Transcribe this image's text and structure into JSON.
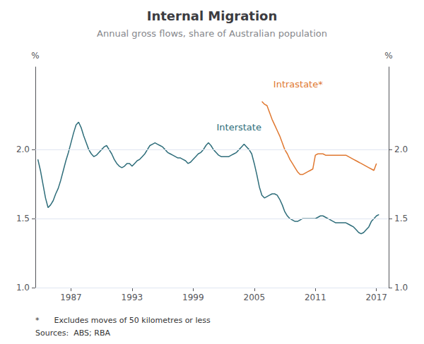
{
  "chart_data": {
    "type": "line",
    "title": "Internal Migration",
    "subtitle": "Annual gross flows, share of Australian population",
    "ylabel": "%",
    "y2label": "%",
    "footnotes": [
      "*      Excludes moves of 50 kilometres or less",
      "Sources:  ABS; RBA"
    ],
    "xlim": [
      1983.5,
      2018.2
    ],
    "xticks": [
      1987,
      1993,
      1999,
      2005,
      2011,
      2017
    ],
    "ylim": [
      1.0,
      2.6
    ],
    "yticks": [
      {
        "value": 1.0,
        "label": "1.0"
      },
      {
        "value": 1.5,
        "label": "1.5"
      },
      {
        "value": 2.0,
        "label": "2.0"
      }
    ],
    "y2lim": [
      1.0,
      2.6
    ],
    "y2ticks": [
      {
        "value": 1.0,
        "label": "1.0"
      },
      {
        "value": 1.5,
        "label": "1.5"
      },
      {
        "value": 2.0,
        "label": "2.0"
      }
    ],
    "grid": true,
    "series": [
      {
        "name": "Interstate",
        "color": "#2e6d7a",
        "annotation": {
          "x": 2003.5,
          "y": 2.12
        },
        "x": [
          1983.75,
          1984.0,
          1984.25,
          1984.5,
          1984.75,
          1985.0,
          1985.25,
          1985.5,
          1985.75,
          1986.0,
          1986.25,
          1986.5,
          1986.75,
          1987.0,
          1987.25,
          1987.5,
          1987.75,
          1988.0,
          1988.25,
          1988.5,
          1988.75,
          1989.0,
          1989.25,
          1989.5,
          1989.75,
          1990.0,
          1990.25,
          1990.5,
          1990.75,
          1991.0,
          1991.25,
          1991.5,
          1991.75,
          1992.0,
          1992.25,
          1992.5,
          1992.75,
          1993.0,
          1993.25,
          1993.5,
          1993.75,
          1994.0,
          1994.25,
          1994.5,
          1994.75,
          1995.0,
          1995.25,
          1995.5,
          1995.75,
          1996.0,
          1996.25,
          1996.5,
          1996.75,
          1997.0,
          1997.25,
          1997.5,
          1997.75,
          1998.0,
          1998.25,
          1998.5,
          1998.75,
          1999.0,
          1999.25,
          1999.5,
          1999.75,
          2000.0,
          2000.25,
          2000.5,
          2000.75,
          2001.0,
          2001.25,
          2001.5,
          2001.75,
          2002.0,
          2002.25,
          2002.5,
          2002.75,
          2003.0,
          2003.25,
          2003.5,
          2003.75,
          2004.0,
          2004.25,
          2004.5,
          2004.75,
          2005.0,
          2005.25,
          2005.5,
          2005.75,
          2006.0,
          2006.25,
          2006.5,
          2006.75,
          2007.0,
          2007.25,
          2007.5,
          2007.75,
          2008.0,
          2008.25,
          2008.5,
          2008.75,
          2009.0,
          2009.25,
          2009.5,
          2009.75,
          2010.0,
          2010.25,
          2010.5,
          2010.75,
          2011.0,
          2011.25,
          2011.5,
          2011.75,
          2012.0,
          2012.25,
          2012.5,
          2012.75,
          2013.0,
          2013.25,
          2013.5,
          2013.75,
          2014.0,
          2014.25,
          2014.5,
          2014.75,
          2015.0,
          2015.25,
          2015.5,
          2015.75,
          2016.0,
          2016.25,
          2016.5,
          2016.75,
          2017.0,
          2017.25
        ],
        "values": [
          1.93,
          1.85,
          1.75,
          1.65,
          1.58,
          1.6,
          1.63,
          1.68,
          1.72,
          1.78,
          1.85,
          1.92,
          1.98,
          2.05,
          2.12,
          2.18,
          2.2,
          2.16,
          2.1,
          2.05,
          2.0,
          1.97,
          1.95,
          1.96,
          1.98,
          2.0,
          2.02,
          2.03,
          2.0,
          1.97,
          1.93,
          1.9,
          1.88,
          1.87,
          1.88,
          1.9,
          1.9,
          1.88,
          1.9,
          1.92,
          1.93,
          1.95,
          1.97,
          2.0,
          2.03,
          2.04,
          2.05,
          2.04,
          2.03,
          2.02,
          2.0,
          1.98,
          1.97,
          1.96,
          1.95,
          1.94,
          1.94,
          1.93,
          1.92,
          1.9,
          1.91,
          1.93,
          1.95,
          1.97,
          1.98,
          2.0,
          2.03,
          2.05,
          2.03,
          2.0,
          1.98,
          1.96,
          1.95,
          1.95,
          1.95,
          1.95,
          1.96,
          1.97,
          1.98,
          2.0,
          2.02,
          2.04,
          2.02,
          2.0,
          1.97,
          1.9,
          1.82,
          1.73,
          1.67,
          1.65,
          1.66,
          1.67,
          1.68,
          1.68,
          1.67,
          1.64,
          1.6,
          1.55,
          1.52,
          1.5,
          1.49,
          1.48,
          1.48,
          1.49,
          1.5,
          1.5,
          1.5,
          1.5,
          1.5,
          1.5,
          1.51,
          1.52,
          1.52,
          1.51,
          1.5,
          1.49,
          1.48,
          1.47,
          1.47,
          1.47,
          1.47,
          1.47,
          1.46,
          1.45,
          1.44,
          1.42,
          1.4,
          1.39,
          1.4,
          1.42,
          1.44,
          1.48,
          1.5,
          1.52,
          1.53
        ]
      },
      {
        "name": "Intrastate*",
        "color": "#e07830",
        "annotation": {
          "x": 2009.3,
          "y": 2.43
        },
        "x": [
          2005.75,
          2006.0,
          2006.25,
          2006.5,
          2006.75,
          2007.0,
          2007.25,
          2007.5,
          2007.75,
          2008.0,
          2008.25,
          2008.5,
          2008.75,
          2009.0,
          2009.25,
          2009.5,
          2009.75,
          2010.0,
          2010.25,
          2010.5,
          2010.75,
          2011.0,
          2011.25,
          2011.5,
          2011.75,
          2012.0,
          2012.25,
          2012.5,
          2012.75,
          2013.0,
          2013.25,
          2013.5,
          2013.75,
          2014.0,
          2014.25,
          2014.5,
          2014.75,
          2015.0,
          2015.25,
          2015.5,
          2015.75,
          2016.0,
          2016.25,
          2016.5,
          2016.75,
          2017.0
        ],
        "values": [
          2.35,
          2.33,
          2.32,
          2.27,
          2.22,
          2.18,
          2.14,
          2.1,
          2.05,
          2.0,
          1.97,
          1.93,
          1.9,
          1.87,
          1.84,
          1.82,
          1.82,
          1.83,
          1.84,
          1.85,
          1.86,
          1.96,
          1.97,
          1.97,
          1.97,
          1.96,
          1.96,
          1.96,
          1.96,
          1.96,
          1.96,
          1.96,
          1.96,
          1.96,
          1.95,
          1.94,
          1.93,
          1.92,
          1.91,
          1.9,
          1.89,
          1.88,
          1.87,
          1.86,
          1.85,
          1.9
        ]
      }
    ]
  }
}
